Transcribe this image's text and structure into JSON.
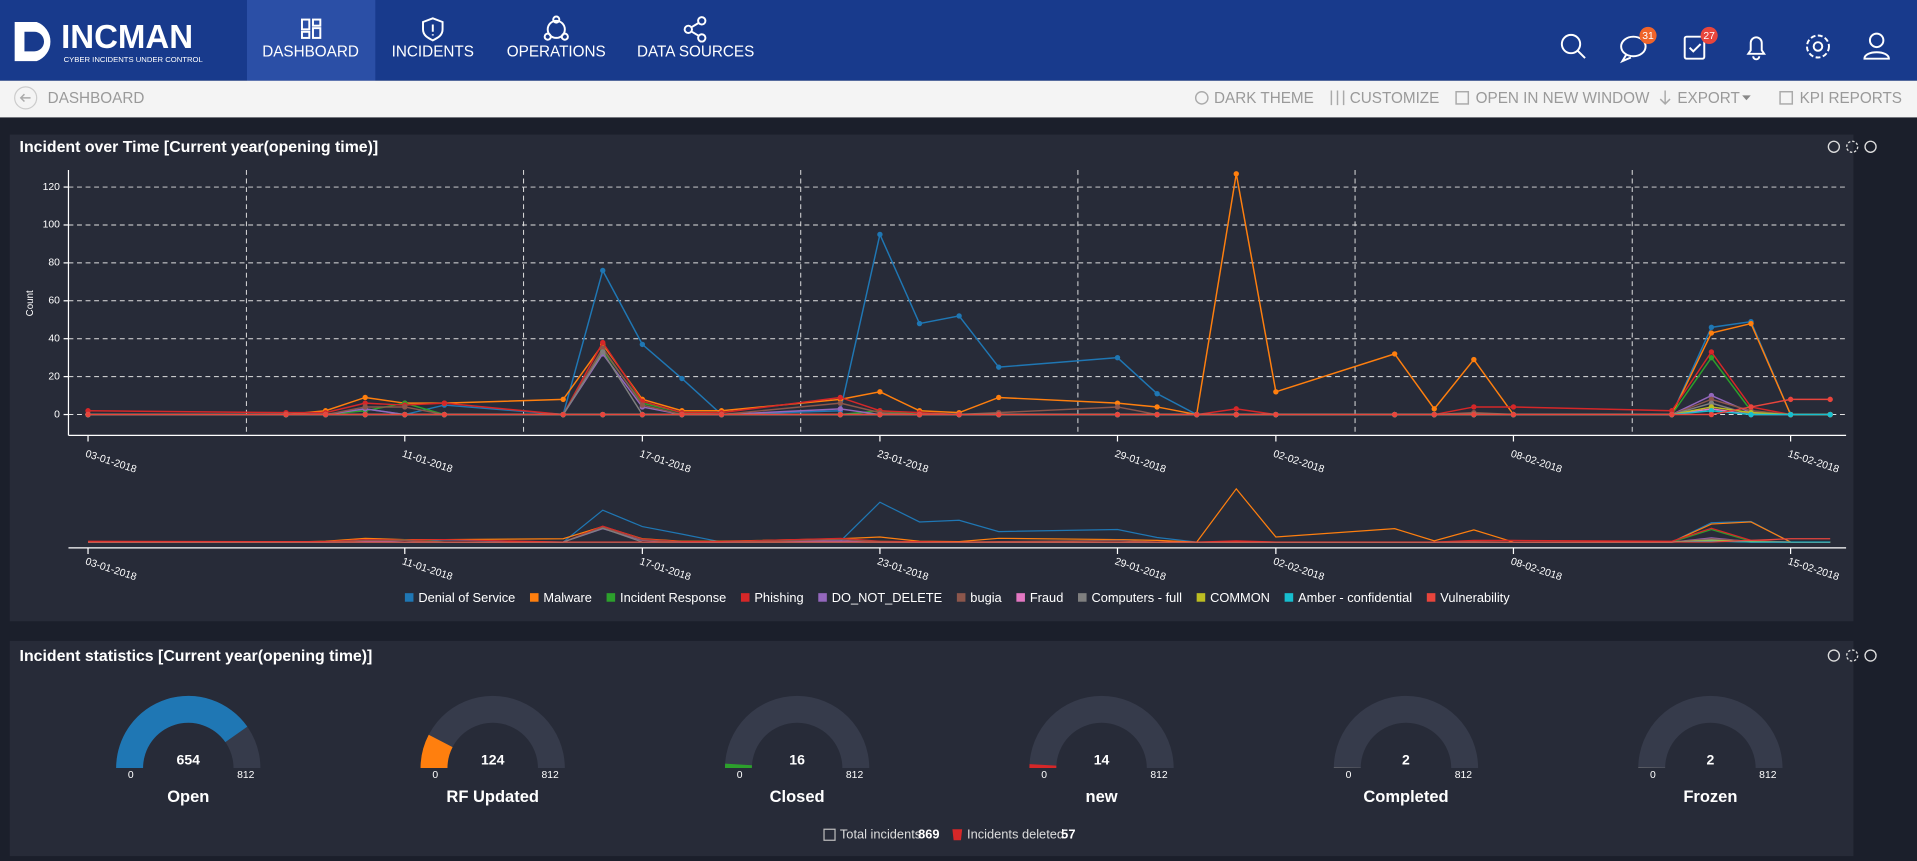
{
  "header": {
    "logo": "INCMAN",
    "tagline": "CYBER INCIDENTS UNDER CONTROL",
    "nav": [
      "DASHBOARD",
      "INCIDENTS",
      "OPERATIONS",
      "DATA SOURCES"
    ],
    "badges": [
      31,
      27
    ]
  },
  "toolbar": {
    "breadcrumb": "DASHBOARD",
    "actions": [
      "DARK THEME",
      "CUSTOMIZE",
      "OPEN IN NEW WINDOW",
      "EXPORT",
      "KPI REPORTS"
    ]
  },
  "incident_chart": {
    "type": "line",
    "title": "Incident over Time [Current year(opening time)]",
    "y_label": "Count",
    "x": [
      "2018-01-03",
      "2018-01-08",
      "2018-01-09",
      "2018-01-10",
      "2018-01-11",
      "2018-01-12",
      "2018-01-15",
      "2018-01-16",
      "2018-01-17",
      "2018-01-18",
      "2018-01-19",
      "2018-01-22",
      "2018-01-23",
      "2018-01-24",
      "2018-01-25",
      "2018-01-26",
      "2018-01-29",
      "2018-01-30",
      "2018-01-31",
      "2018-02-01",
      "2018-02-02",
      "2018-02-05",
      "2018-02-06",
      "2018-02-07",
      "2018-02-08",
      "2018-02-12",
      "2018-02-13",
      "2018-02-14",
      "2018-02-15",
      "2018-02-16"
    ],
    "xlim": [
      "2018-01-03",
      "2018-02-16"
    ],
    "xticks": [
      {
        "value": "2018-01-03",
        "label": "03-01-2018"
      },
      {
        "value": "2018-01-11",
        "label": "11-01-2018"
      },
      {
        "value": "2018-01-17",
        "label": "17-01-2018"
      },
      {
        "value": "2018-01-23",
        "label": "23-01-2018"
      },
      {
        "value": "2018-01-29",
        "label": "29-01-2018"
      },
      {
        "value": "2018-02-02",
        "label": "02-02-2018"
      },
      {
        "value": "2018-02-08",
        "label": "08-02-2018"
      },
      {
        "value": "2018-02-15",
        "label": "15-02-2018"
      }
    ],
    "xgrid": [
      "2018-01-07",
      "2018-01-14",
      "2018-01-21",
      "2018-01-28",
      "2018-02-04",
      "2018-02-11"
    ],
    "ylim": [
      -11,
      129
    ],
    "yticks": [
      0,
      20,
      40,
      60,
      80,
      100,
      120
    ],
    "grid": true,
    "series": [
      {
        "name": "Denial of Service",
        "color": "#1f77b4",
        "values": [
          0,
          0,
          0,
          3,
          0,
          5,
          0,
          76,
          37,
          19,
          0,
          2,
          95,
          48,
          52,
          25,
          30,
          11,
          0,
          0,
          0,
          0,
          0,
          0,
          0,
          0,
          46,
          49,
          0,
          0
        ]
      },
      {
        "name": "Malware",
        "color": "#ff7f0e",
        "values": [
          0,
          0,
          2,
          9,
          6,
          6,
          8,
          37,
          8,
          2,
          2,
          8,
          12,
          2,
          1,
          9,
          6,
          4,
          0,
          127,
          12,
          32,
          3,
          29,
          0,
          0,
          43,
          48,
          0,
          0
        ]
      },
      {
        "name": "Incident Response",
        "color": "#2ca02c",
        "values": [
          0,
          0,
          0,
          2,
          6,
          0,
          0,
          34,
          6,
          1,
          0,
          0,
          2,
          0,
          0,
          0,
          0,
          0,
          0,
          0,
          0,
          0,
          0,
          0,
          0,
          0,
          30,
          2,
          0,
          0
        ]
      },
      {
        "name": "Phishing",
        "color": "#d62728",
        "values": [
          2,
          1,
          1,
          6,
          5,
          6,
          0,
          38,
          7,
          1,
          1,
          9,
          2,
          1,
          0,
          0,
          0,
          0,
          0,
          3,
          0,
          0,
          0,
          4,
          4,
          2,
          33,
          4,
          0,
          0
        ]
      },
      {
        "name": "DO_NOT_DELETE",
        "color": "#9467bd",
        "values": [
          0,
          0,
          0,
          3,
          0,
          0,
          0,
          32,
          4,
          0,
          0,
          3,
          0,
          0,
          0,
          0,
          0,
          0,
          0,
          0,
          0,
          0,
          0,
          0,
          0,
          0,
          10,
          1,
          0,
          0
        ]
      },
      {
        "name": "bugia",
        "color": "#8c564b",
        "values": [
          0,
          0,
          0,
          4,
          4,
          0,
          0,
          35,
          5,
          0,
          0,
          6,
          1,
          0,
          0,
          1,
          4,
          0,
          0,
          0,
          0,
          0,
          0,
          1,
          0,
          0,
          8,
          2,
          0,
          0
        ]
      },
      {
        "name": "Fraud",
        "color": "#e377c2",
        "values": [
          0,
          0,
          0,
          0,
          0,
          0,
          0,
          0,
          0,
          0,
          0,
          0,
          0,
          0,
          0,
          0,
          0,
          0,
          0,
          0,
          0,
          0,
          0,
          0,
          0,
          0,
          3,
          0,
          0,
          0
        ]
      },
      {
        "name": "Computers - full",
        "color": "#7f7f7f",
        "values": [
          0,
          0,
          0,
          0,
          0,
          0,
          0,
          33,
          0,
          0,
          0,
          0,
          0,
          0,
          0,
          0,
          0,
          0,
          0,
          0,
          0,
          0,
          0,
          0,
          0,
          0,
          6,
          0,
          0,
          0
        ]
      },
      {
        "name": "COMMON",
        "color": "#bcbd22",
        "values": [
          0,
          0,
          0,
          0,
          0,
          0,
          0,
          0,
          0,
          0,
          0,
          0,
          0,
          0,
          0,
          0,
          0,
          0,
          0,
          0,
          0,
          0,
          0,
          0,
          0,
          0,
          4,
          1,
          0,
          0
        ]
      },
      {
        "name": "Amber - confidential",
        "color": "#17becf",
        "values": [
          0,
          0,
          0,
          0,
          0,
          0,
          0,
          0,
          0,
          0,
          0,
          0,
          0,
          0,
          0,
          0,
          0,
          0,
          0,
          0,
          0,
          0,
          0,
          0,
          0,
          0,
          2,
          0,
          0,
          0
        ]
      },
      {
        "name": "Vulnerability",
        "color": "#e8453c",
        "values": [
          0,
          0,
          0,
          0,
          0,
          0,
          0,
          0,
          0,
          0,
          0,
          0,
          0,
          0,
          0,
          0,
          0,
          0,
          0,
          0,
          0,
          0,
          0,
          0,
          0,
          0,
          0,
          4,
          8,
          8
        ]
      }
    ]
  },
  "statistics": {
    "title": "Incident statistics [Current year(opening time)]",
    "min": 0,
    "max": 812,
    "gauges": [
      {
        "label": "Open",
        "value": 654,
        "color": "#1f77b4"
      },
      {
        "label": "RF Updated",
        "value": 124,
        "color": "#ff7f0e"
      },
      {
        "label": "Closed",
        "value": 16,
        "color": "#2ca02c"
      },
      {
        "label": "new",
        "value": 14,
        "color": "#d62728"
      },
      {
        "label": "Completed",
        "value": 2,
        "color": "#7f7f7f"
      },
      {
        "label": "Frozen",
        "value": 2,
        "color": "#7f7f7f"
      }
    ],
    "total_label": "Total incidents",
    "total": 869,
    "deleted_label": "Incidents deleted",
    "deleted": 57
  }
}
